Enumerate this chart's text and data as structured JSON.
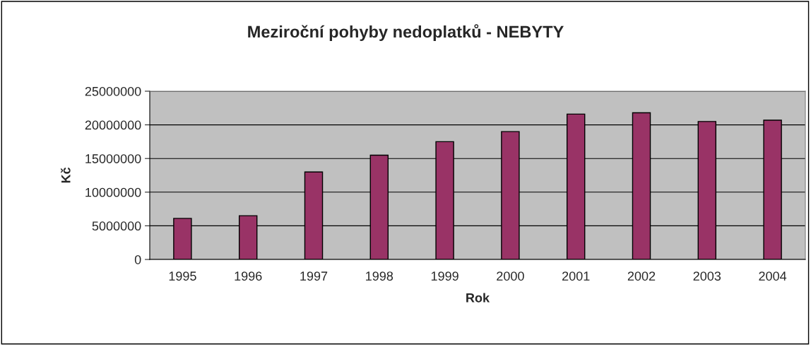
{
  "chart_data": {
    "type": "bar",
    "title": "Meziroční pohyby nedoplatků - NEBYTY",
    "xlabel": "Rok",
    "ylabel": "Kč",
    "categories": [
      "1995",
      "1996",
      "1997",
      "1998",
      "1999",
      "2000",
      "2001",
      "2002",
      "2003",
      "2004"
    ],
    "values": [
      6100000,
      6500000,
      13000000,
      15500000,
      17500000,
      19000000,
      21600000,
      21800000,
      20500000,
      20700000
    ],
    "color": "#993366",
    "ylim": [
      0,
      25000000
    ],
    "yticks": [
      0,
      5000000,
      10000000,
      15000000,
      20000000,
      25000000
    ],
    "grid": "y",
    "legend": false
  }
}
